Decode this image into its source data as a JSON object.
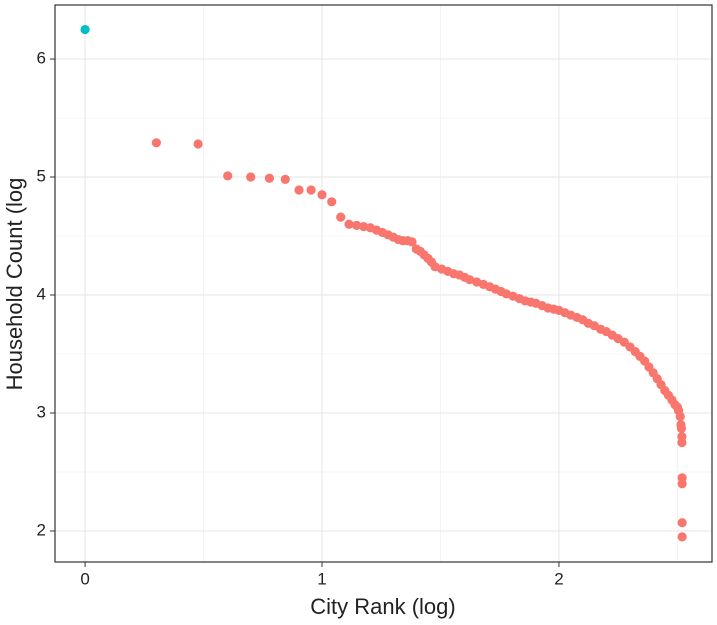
{
  "chart_data": {
    "type": "scatter",
    "x_label": "City Rank (log)",
    "y_label": "Household Count (log",
    "xlim": [
      -0.127,
      2.646
    ],
    "ylim": [
      1.737,
      6.458
    ],
    "xticks": [
      0,
      1,
      2
    ],
    "yticks": [
      2,
      3,
      4,
      5,
      6
    ],
    "xminor_ticks": [
      0.5,
      1.5,
      2.5
    ],
    "yminor_ticks": [
      2.5,
      3.5,
      4.5,
      5.5
    ],
    "grid": true,
    "series": [
      {
        "color": "#00BFC4",
        "x": [
          0
        ],
        "values": [
          6.25
        ]
      },
      {
        "color": "#F8766D",
        "x": [
          0.301,
          0.477,
          0.602,
          0.699,
          0.778,
          0.845,
          0.903,
          0.954,
          1.0,
          1.041,
          1.079,
          1.114,
          1.146,
          1.176,
          1.204,
          1.23,
          1.255,
          1.279,
          1.301,
          1.322,
          1.342,
          1.362,
          1.38,
          1.398,
          1.415,
          1.431,
          1.447,
          1.462,
          1.477,
          1.505,
          1.531,
          1.556,
          1.58,
          1.602,
          1.623,
          1.653,
          1.681,
          1.708,
          1.732,
          1.756,
          1.778,
          1.806,
          1.833,
          1.857,
          1.881,
          1.903,
          1.929,
          1.954,
          1.978,
          2.0,
          2.025,
          2.05,
          2.076,
          2.1,
          2.124,
          2.149,
          2.176,
          2.2,
          2.225,
          2.25,
          2.276,
          2.3,
          2.322,
          2.342,
          2.362,
          2.38,
          2.398,
          2.415,
          2.431,
          2.447,
          2.462,
          2.477,
          2.49,
          2.5,
          2.505,
          2.512,
          2.515,
          2.517,
          2.519,
          2.519,
          2.52,
          2.52,
          2.52,
          2.52
        ],
        "values": [
          5.29,
          5.28,
          5.01,
          5.0,
          4.99,
          4.98,
          4.89,
          4.89,
          4.85,
          4.79,
          4.66,
          4.6,
          4.59,
          4.58,
          4.57,
          4.55,
          4.53,
          4.51,
          4.49,
          4.47,
          4.46,
          4.46,
          4.45,
          4.39,
          4.37,
          4.34,
          4.31,
          4.28,
          4.24,
          4.22,
          4.2,
          4.18,
          4.17,
          4.15,
          4.13,
          4.11,
          4.09,
          4.07,
          4.05,
          4.03,
          4.01,
          3.99,
          3.97,
          3.95,
          3.94,
          3.93,
          3.91,
          3.89,
          3.88,
          3.87,
          3.85,
          3.83,
          3.81,
          3.79,
          3.76,
          3.74,
          3.71,
          3.69,
          3.66,
          3.63,
          3.6,
          3.56,
          3.52,
          3.48,
          3.44,
          3.39,
          3.34,
          3.29,
          3.24,
          3.19,
          3.15,
          3.11,
          3.07,
          3.05,
          3.02,
          2.97,
          2.9,
          2.87,
          2.8,
          2.75,
          2.45,
          2.4,
          2.07,
          1.95
        ]
      }
    ]
  }
}
